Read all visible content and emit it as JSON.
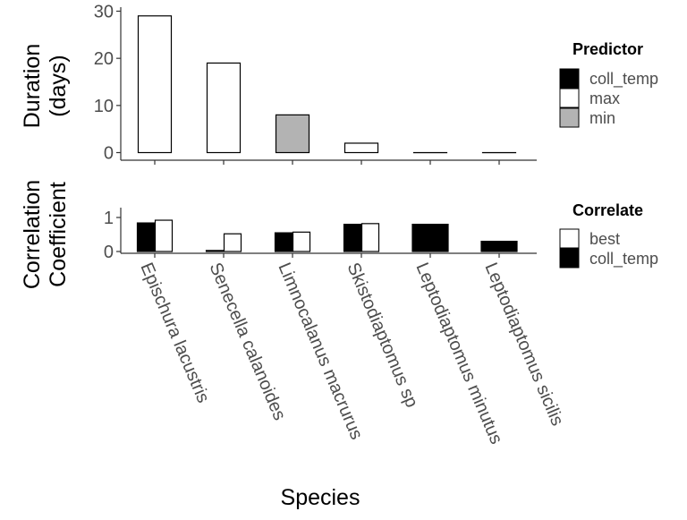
{
  "chart_data": [
    {
      "type": "bar",
      "ylabel_lines": [
        "Duration",
        "(days)"
      ],
      "categories": [
        "Epischura lacustris",
        "Senecella calanoides",
        "Limnocalanus macrurus",
        "Skistodiaptomus sp",
        "Leptodiaptomus minutus",
        "Leptodiaptomus sicilis"
      ],
      "values": [
        29,
        19,
        8,
        2,
        0,
        0
      ],
      "fill_series": [
        "max",
        "max",
        "min",
        "max",
        "max",
        "max"
      ],
      "yticks": [
        0,
        10,
        20,
        30
      ],
      "ylim": [
        -1.5,
        30.5
      ],
      "grid": false,
      "legend": {
        "title": "Predictor",
        "placement": "right",
        "entries": [
          {
            "label": "coll_temp",
            "color": "#000000"
          },
          {
            "label": "max",
            "color": "#ffffff"
          },
          {
            "label": "min",
            "color": "#b3b3b3"
          }
        ]
      }
    },
    {
      "type": "bar",
      "ylabel_lines": [
        "Correlation",
        "Coefficient"
      ],
      "xlabel": "Species",
      "categories": [
        "Epischura lacustris",
        "Senecella calanoides",
        "Limnocalanus macrurus",
        "Skistodiaptomus sp",
        "Leptodiaptomus minutus",
        "Leptodiaptomus sicilis"
      ],
      "series": [
        {
          "name": "coll_temp",
          "color": "#000000",
          "values": [
            0.84,
            0.03,
            0.55,
            0.8,
            0.8,
            0.3
          ]
        },
        {
          "name": "best",
          "color": "#ffffff",
          "values": [
            0.92,
            0.52,
            0.57,
            0.82,
            null,
            null
          ]
        }
      ],
      "yticks": [
        0,
        1
      ],
      "ylim": [
        -0.05,
        1.05
      ],
      "grid": false,
      "legend": {
        "title": "Correlate",
        "placement": "right",
        "entries": [
          {
            "label": "best",
            "color": "#ffffff"
          },
          {
            "label": "coll_temp",
            "color": "#000000"
          }
        ]
      }
    }
  ]
}
